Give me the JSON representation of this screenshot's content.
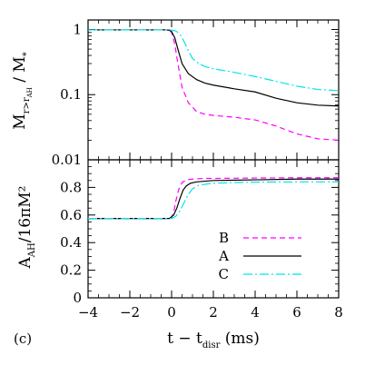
{
  "panel_label": "(c)",
  "chart_data": [
    {
      "type": "line",
      "panel": "top",
      "yscale": "log",
      "xlim": [
        -4,
        8
      ],
      "ylim": [
        0.01,
        1.4
      ],
      "ylabel": {
        "main": "M",
        "sub": "r>r",
        "subsub": "AH",
        "suffix": " / M",
        "suffix_sub": "*"
      },
      "yticks": [
        {
          "value": 1,
          "label": "1"
        },
        {
          "value": 0.1,
          "label": "0.1"
        },
        {
          "value": 0.01,
          "label": "0.01"
        }
      ],
      "series": [
        {
          "name": "B",
          "color": "#ff00ff",
          "dash": "dashed",
          "x": [
            -4,
            -0.3,
            -0.1,
            0,
            0.15,
            0.3,
            0.5,
            0.8,
            1.2,
            1.6,
            2.0,
            3.0,
            4.0,
            5.0,
            6.0,
            7.0,
            8.0
          ],
          "y": [
            0.985,
            0.985,
            0.97,
            0.9,
            0.6,
            0.3,
            0.13,
            0.075,
            0.055,
            0.05,
            0.048,
            0.045,
            0.041,
            0.033,
            0.025,
            0.021,
            0.02
          ]
        },
        {
          "name": "A",
          "color": "#000000",
          "dash": "solid",
          "x": [
            -4,
            -0.3,
            -0.1,
            0,
            0.15,
            0.3,
            0.5,
            0.8,
            1.2,
            1.6,
            2.0,
            3.0,
            4.0,
            5.0,
            6.0,
            7.0,
            8.0
          ],
          "y": [
            0.985,
            0.985,
            0.975,
            0.93,
            0.75,
            0.5,
            0.3,
            0.21,
            0.17,
            0.15,
            0.14,
            0.123,
            0.11,
            0.088,
            0.075,
            0.069,
            0.067
          ]
        },
        {
          "name": "C",
          "color": "#00e5e5",
          "dash": "dashdot",
          "x": [
            -4,
            -0.1,
            0,
            0.2,
            0.4,
            0.6,
            0.8,
            1.0,
            1.3,
            1.6,
            2.0,
            3.0,
            4.0,
            5.0,
            6.0,
            7.0,
            8.0
          ],
          "y": [
            0.985,
            0.985,
            0.98,
            0.95,
            0.85,
            0.65,
            0.47,
            0.36,
            0.3,
            0.27,
            0.25,
            0.22,
            0.19,
            0.16,
            0.135,
            0.12,
            0.115
          ]
        }
      ]
    },
    {
      "type": "line",
      "panel": "bottom",
      "xlim": [
        -4,
        8
      ],
      "ylim": [
        0,
        1.0
      ],
      "xlabel": {
        "main": "t − t",
        "sub": "disr",
        "suffix": " (ms)"
      },
      "ylabel": {
        "main": "A",
        "sub": "AH",
        "suffix": "/16πM²"
      },
      "xticks": [
        {
          "value": -4,
          "label": "−4"
        },
        {
          "value": -2,
          "label": "−2"
        },
        {
          "value": 0,
          "label": "0"
        },
        {
          "value": 2,
          "label": "2"
        },
        {
          "value": 4,
          "label": "4"
        },
        {
          "value": 6,
          "label": "6"
        },
        {
          "value": 8,
          "label": "8"
        }
      ],
      "yticks": [
        {
          "value": 0,
          "label": "0"
        },
        {
          "value": 0.2,
          "label": "0.2"
        },
        {
          "value": 0.4,
          "label": "0.4"
        },
        {
          "value": 0.6,
          "label": "0.6"
        },
        {
          "value": 0.8,
          "label": "0.8"
        }
      ],
      "legend": {
        "position": "lower-right",
        "entries": [
          "B",
          "A",
          "C"
        ]
      },
      "series": [
        {
          "name": "B",
          "color": "#ff00ff",
          "dash": "dashed",
          "x": [
            -4,
            -0.1,
            0,
            0.1,
            0.2,
            0.35,
            0.5,
            0.7,
            1.0,
            1.5,
            2.0,
            4.0,
            6.0,
            8.0
          ],
          "y": [
            0.575,
            0.575,
            0.585,
            0.62,
            0.7,
            0.79,
            0.835,
            0.855,
            0.86,
            0.865,
            0.865,
            0.868,
            0.87,
            0.87
          ]
        },
        {
          "name": "A",
          "color": "#000000",
          "dash": "solid",
          "x": [
            -4,
            -0.1,
            0.1,
            0.25,
            0.4,
            0.55,
            0.7,
            0.9,
            1.2,
            1.6,
            2.0,
            4.0,
            6.0,
            8.0
          ],
          "y": [
            0.575,
            0.575,
            0.6,
            0.65,
            0.72,
            0.78,
            0.81,
            0.83,
            0.84,
            0.845,
            0.85,
            0.855,
            0.86,
            0.86
          ]
        },
        {
          "name": "C",
          "color": "#00e5e5",
          "dash": "dashdot",
          "x": [
            -4,
            0,
            0.2,
            0.4,
            0.6,
            0.8,
            1.0,
            1.3,
            1.7,
            2.0,
            3.0,
            4.0,
            6.0,
            8.0
          ],
          "y": [
            0.575,
            0.575,
            0.59,
            0.63,
            0.69,
            0.75,
            0.79,
            0.815,
            0.825,
            0.83,
            0.835,
            0.838,
            0.84,
            0.84
          ]
        }
      ]
    }
  ]
}
